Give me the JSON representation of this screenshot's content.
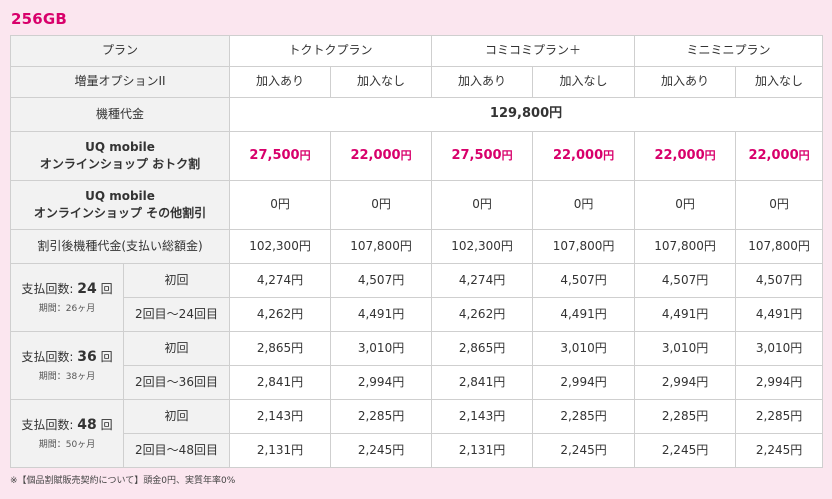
{
  "heading": "256GB",
  "header": {
    "plan_label": "プラン",
    "plans": [
      "トクトクプラン",
      "コミコミプラン＋",
      "ミニミニプラン"
    ],
    "option_label": "増量オプションII",
    "options": [
      "加入あり",
      "加入なし",
      "加入あり",
      "加入なし",
      "加入あり",
      "加入なし"
    ]
  },
  "device_price": {
    "label": "機種代金",
    "value": "129,800円"
  },
  "discount_otoku": {
    "label_line1": "UQ mobile",
    "label_line2": "オンラインショップ おトク割",
    "values": [
      "27,500",
      "22,000",
      "27,500",
      "22,000",
      "22,000",
      "22,000"
    ],
    "unit": "円"
  },
  "discount_other": {
    "label_line1": "UQ mobile",
    "label_line2": "オンラインショップ その他割引",
    "values": [
      "0円",
      "0円",
      "0円",
      "0円",
      "0円",
      "0円"
    ]
  },
  "after_discount": {
    "label": "割引後機種代金(支払い総額金)",
    "values": [
      "102,300円",
      "107,800円",
      "102,300円",
      "107,800円",
      "107,800円",
      "107,800円"
    ]
  },
  "installments": [
    {
      "title_prefix": "支払回数:",
      "count": "24",
      "title_suffix": "回",
      "period": "期間：26ヶ月",
      "first_label": "初回",
      "first_values": [
        "4,274円",
        "4,507円",
        "4,274円",
        "4,507円",
        "4,507円",
        "4,507円"
      ],
      "rest_label": "2回目〜24回目",
      "rest_values": [
        "4,262円",
        "4,491円",
        "4,262円",
        "4,491円",
        "4,491円",
        "4,491円"
      ]
    },
    {
      "title_prefix": "支払回数:",
      "count": "36",
      "title_suffix": "回",
      "period": "期間：38ヶ月",
      "first_label": "初回",
      "first_values": [
        "2,865円",
        "3,010円",
        "2,865円",
        "3,010円",
        "3,010円",
        "3,010円"
      ],
      "rest_label": "2回目〜36回目",
      "rest_values": [
        "2,841円",
        "2,994円",
        "2,841円",
        "2,994円",
        "2,994円",
        "2,994円"
      ]
    },
    {
      "title_prefix": "支払回数:",
      "count": "48",
      "title_suffix": "回",
      "period": "期間：50ヶ月",
      "first_label": "初回",
      "first_values": [
        "2,143円",
        "2,285円",
        "2,143円",
        "2,285円",
        "2,285円",
        "2,285円"
      ],
      "rest_label": "2回目〜48回目",
      "rest_values": [
        "2,131円",
        "2,245円",
        "2,131円",
        "2,245円",
        "2,245円",
        "2,245円"
      ]
    }
  ],
  "footnote": "※【個品割賦販売契約について】頭金0円、実質年率0%",
  "colors": {
    "accent": "#d8006b",
    "background": "#fbe6ef",
    "label_bg": "#f2f2f2"
  }
}
